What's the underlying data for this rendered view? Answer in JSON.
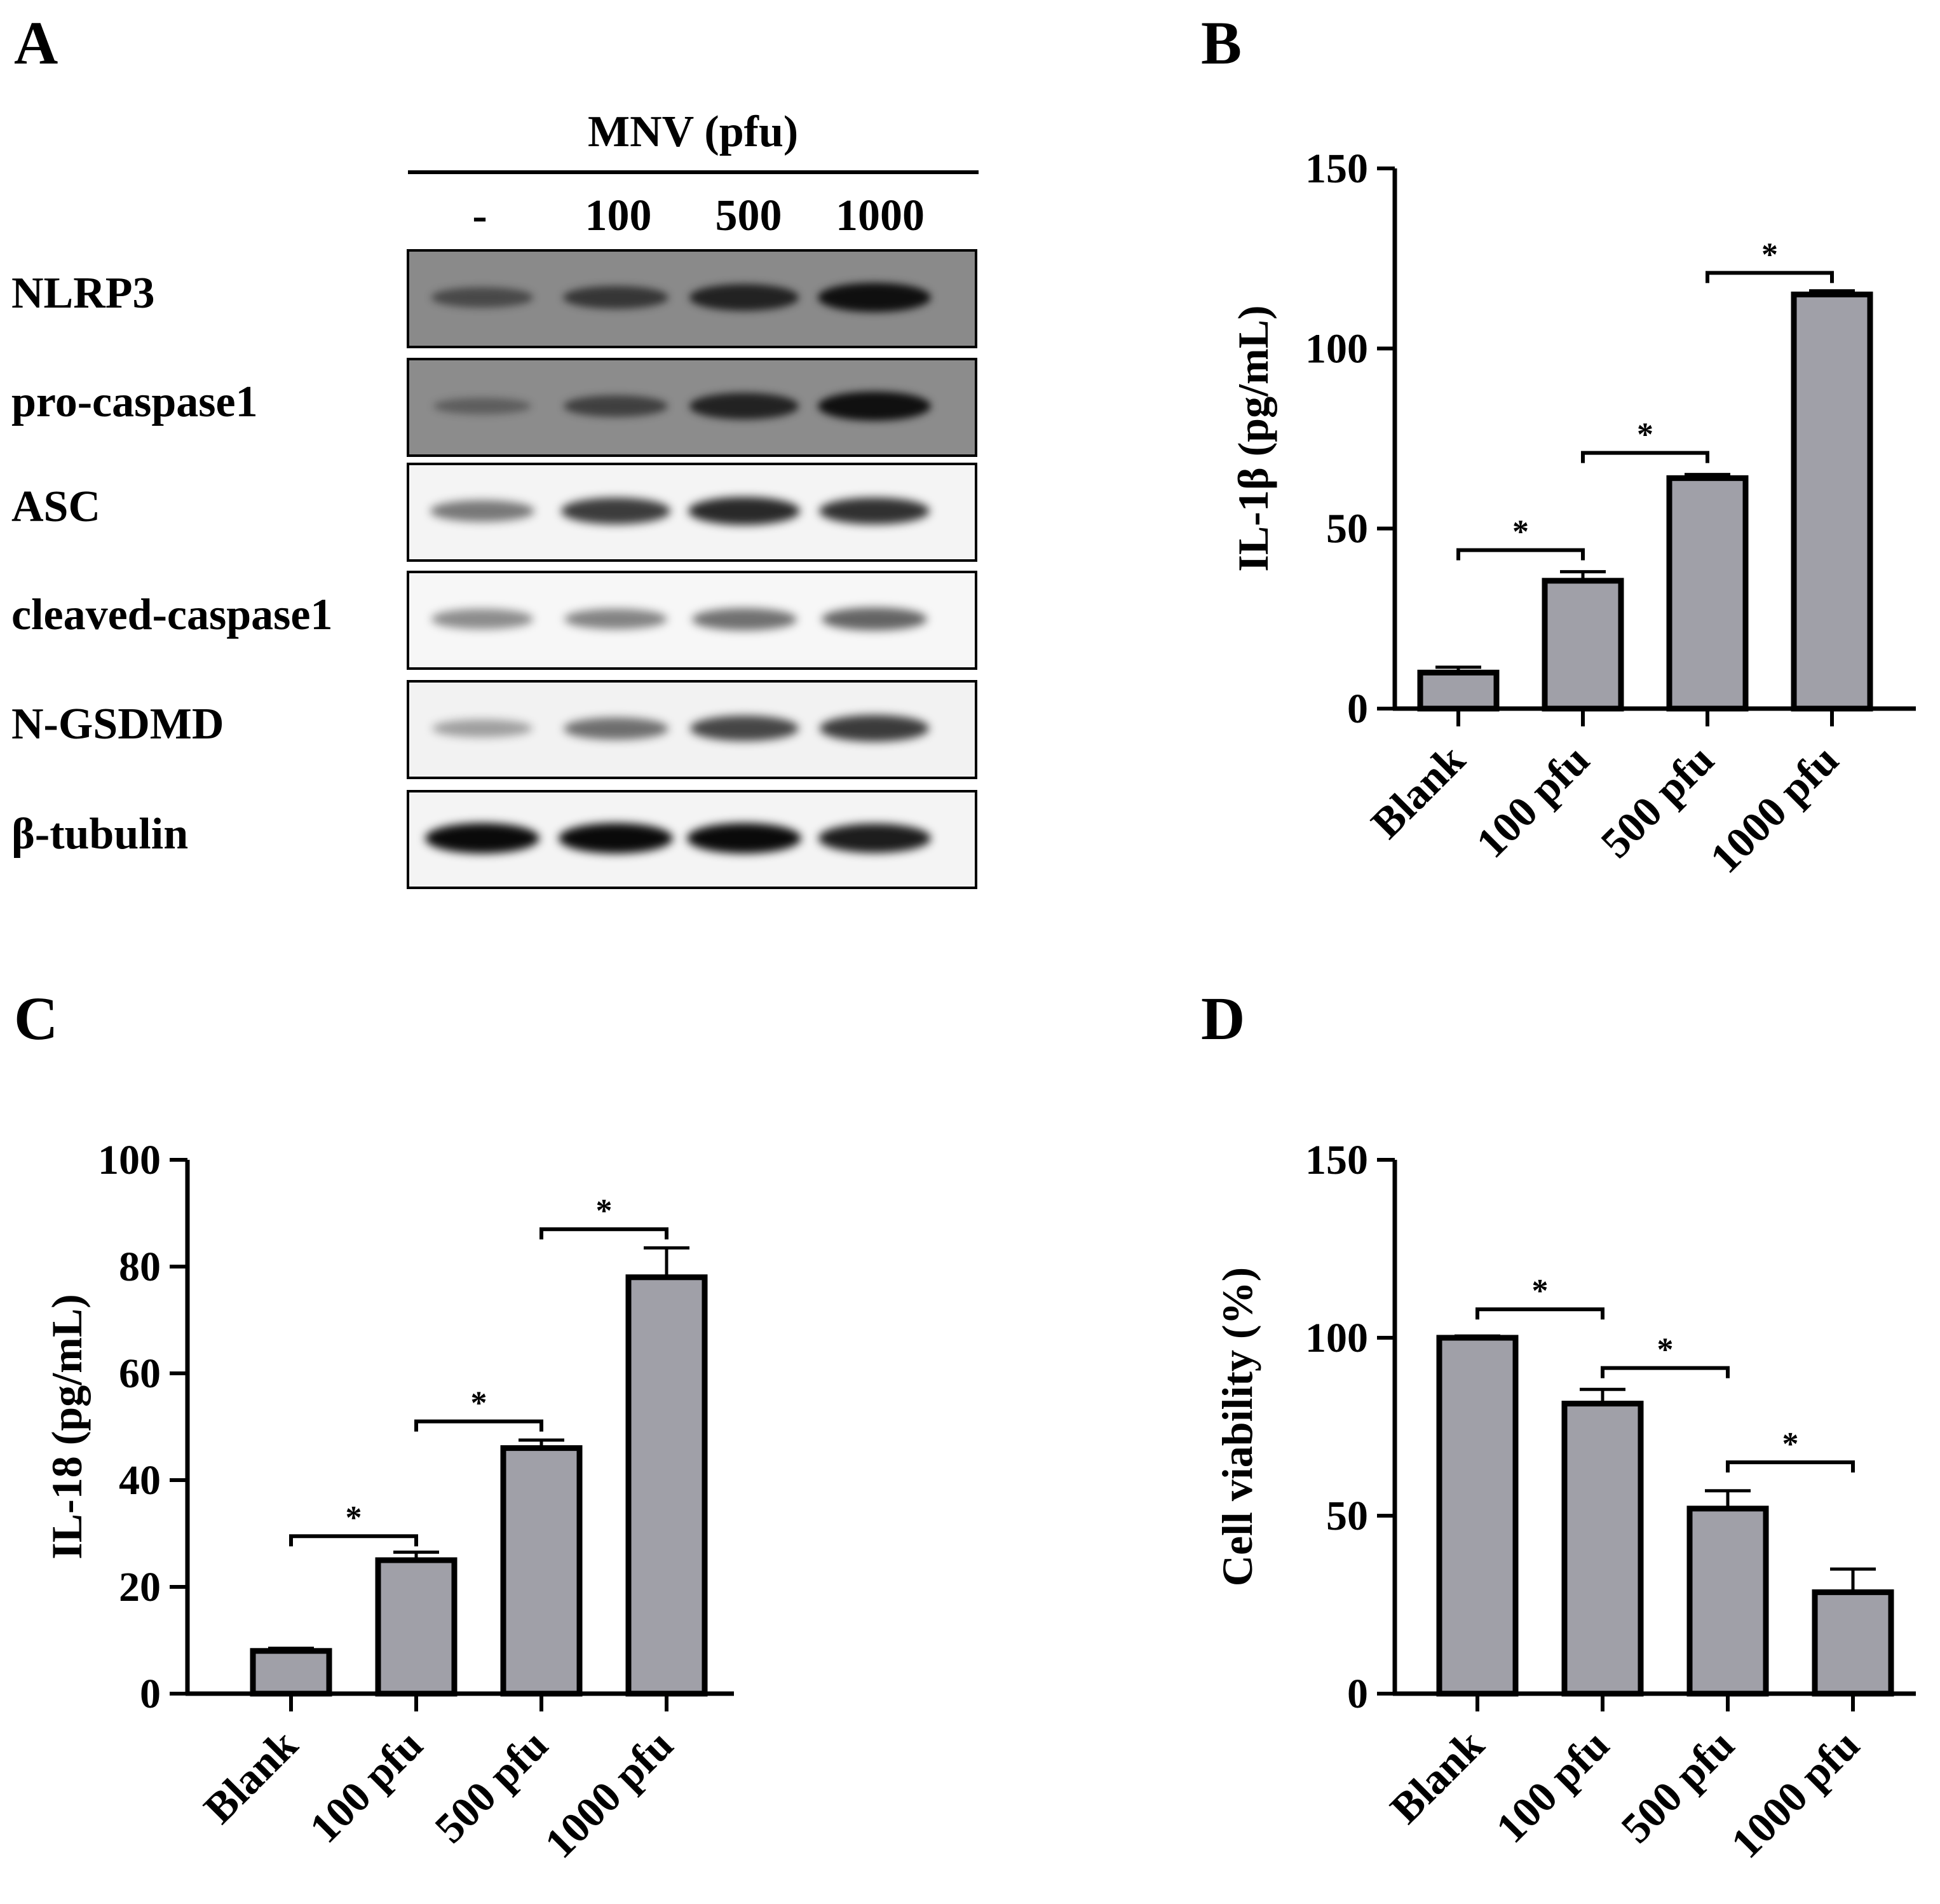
{
  "panels": {
    "a": "A",
    "b": "B",
    "c": "C",
    "d": "D"
  },
  "western_blot": {
    "header": "MNV (pfu)",
    "lanes": [
      "-",
      "100",
      "500",
      "1000"
    ],
    "rows": [
      {
        "label": "NLRP3",
        "background": "#8a8a8a",
        "intensity": [
          0.35,
          0.55,
          0.75,
          0.95
        ]
      },
      {
        "label": "pro-caspase1",
        "background": "#8c8c8c",
        "intensity": [
          0.15,
          0.45,
          0.75,
          0.95
        ]
      },
      {
        "label": "ASC",
        "background": "#f4f4f4",
        "intensity": [
          0.45,
          0.75,
          0.85,
          0.8
        ]
      },
      {
        "label": "cleaved-caspase1",
        "background": "#f7f7f7",
        "intensity": [
          0.35,
          0.4,
          0.5,
          0.55
        ]
      },
      {
        "label": "N-GSDMD",
        "background": "#f2f2f2",
        "intensity": [
          0.25,
          0.5,
          0.7,
          0.75
        ]
      },
      {
        "label": "β-tubulin",
        "background": "#f4f4f4",
        "intensity": [
          1.0,
          1.0,
          1.0,
          0.9
        ]
      }
    ]
  },
  "chart_data": [
    {
      "panel": "B",
      "type": "bar",
      "categories": [
        "Blank",
        "100 pfu",
        "500 pfu",
        "1000 pfu"
      ],
      "values": [
        10,
        35.5,
        64,
        115
      ],
      "errors": [
        1.5,
        2.5,
        1,
        1
      ],
      "ylabel": "IL-1β (pg/mL)",
      "ylim": [
        0,
        150
      ],
      "yticks": [
        0,
        50,
        100,
        150
      ],
      "significance": [
        {
          "from": 0,
          "to": 1,
          "y": 44,
          "label": "*"
        },
        {
          "from": 1,
          "to": 2,
          "y": 71,
          "label": "*"
        },
        {
          "from": 2,
          "to": 3,
          "y": 121,
          "label": "*"
        }
      ],
      "bar_color": "#a0a0a8"
    },
    {
      "panel": "C",
      "type": "bar",
      "categories": [
        "Blank",
        "100 pfu",
        "500 pfu",
        "1000 pfu"
      ],
      "values": [
        8,
        25,
        46,
        78
      ],
      "errors": [
        0.5,
        1.5,
        1.5,
        5.5
      ],
      "ylabel": "IL-18 (pg/mL)",
      "ylim": [
        0,
        100
      ],
      "yticks": [
        0,
        20,
        40,
        60,
        80,
        100
      ],
      "significance": [
        {
          "from": 0,
          "to": 1,
          "y": 29.5,
          "label": "*"
        },
        {
          "from": 1,
          "to": 2,
          "y": 51,
          "label": "*"
        },
        {
          "from": 2,
          "to": 3,
          "y": 87,
          "label": "*"
        }
      ],
      "bar_color": "#a0a0a8"
    },
    {
      "panel": "D",
      "type": "bar",
      "categories": [
        "Blank",
        "100 pfu",
        "500 pfu",
        "1000 pfu"
      ],
      "values": [
        100,
        81.5,
        52,
        28.5
      ],
      "errors": [
        0.5,
        4,
        5,
        6.5
      ],
      "ylabel": "Cell viability (%)",
      "ylim": [
        0,
        150
      ],
      "yticks": [
        0,
        50,
        100,
        150
      ],
      "significance": [
        {
          "from": 0,
          "to": 1,
          "y": 108,
          "label": "*"
        },
        {
          "from": 1,
          "to": 2,
          "y": 91.5,
          "label": "*"
        },
        {
          "from": 2,
          "to": 3,
          "y": 65,
          "label": "*"
        }
      ],
      "bar_color": "#a0a0a8"
    }
  ]
}
